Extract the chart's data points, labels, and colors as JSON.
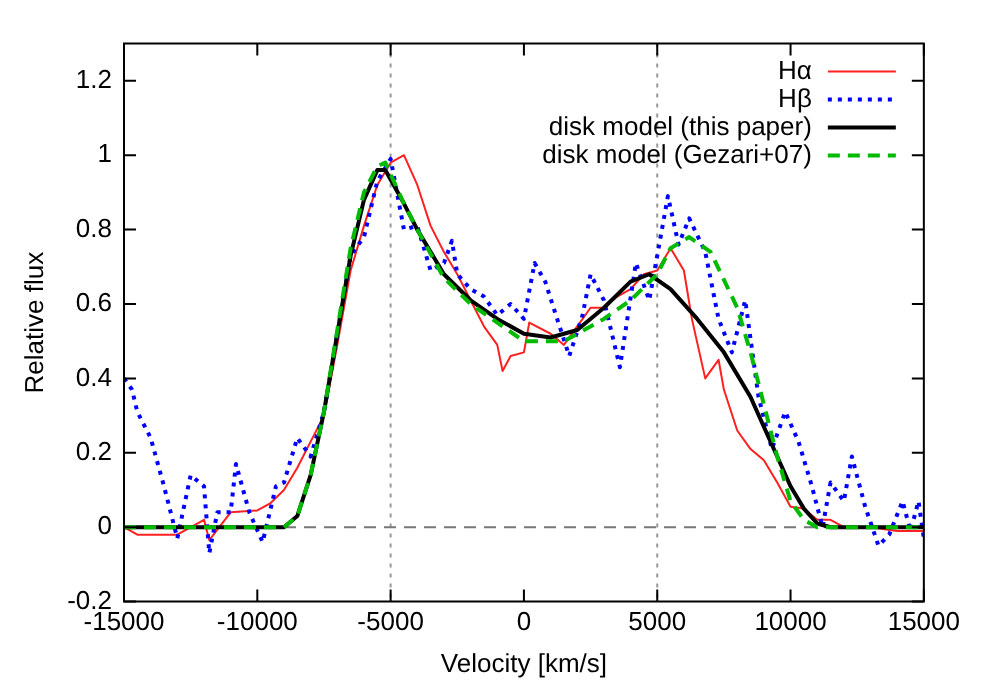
{
  "chart_data": {
    "type": "line",
    "xlabel": "Velocity [km/s]",
    "ylabel": "Relative flux",
    "xlim": [
      -15000,
      15000
    ],
    "xticks": [
      -15000,
      -10000,
      -5000,
      0,
      5000,
      10000,
      15000
    ],
    "ylim": [
      -0.2,
      1.3
    ],
    "yticks": [
      -0.2,
      0,
      0.2,
      0.4,
      0.6,
      0.8,
      1,
      1.2
    ],
    "grid": false,
    "legend": "top right",
    "marker": "none",
    "ref_lines": [
      {
        "axis": "x",
        "value": -5000,
        "color": "#999999",
        "line_style": "dotted"
      },
      {
        "axis": "x",
        "value": 5000,
        "color": "#999999",
        "line_style": "dotted"
      },
      {
        "axis": "y",
        "value": 0,
        "color": "#777777",
        "line_style": "dashed"
      }
    ],
    "series": [
      {
        "name": "Hα",
        "color": "#ff2020",
        "line_style": "solid",
        "x": [
          -15000,
          -14500,
          -13000,
          -12000,
          -11800,
          -11000,
          -10000,
          -9500,
          -9000,
          -8500,
          -8000,
          -7500,
          -7000,
          -6500,
          -6000,
          -5500,
          -5000,
          -4500,
          -4000,
          -3500,
          -3000,
          -2500,
          -2000,
          -1500,
          -1000,
          -800,
          -500,
          0,
          200,
          1000,
          1500,
          2000,
          2500,
          3000,
          3500,
          4000,
          4500,
          5000,
          5500,
          6000,
          6300,
          6800,
          7300,
          7500,
          8000,
          8500,
          9000,
          9500,
          10000,
          10500,
          11000,
          11500,
          12000,
          13000,
          14000,
          15000
        ],
        "values": [
          0,
          -0.02,
          -0.02,
          0.02,
          -0.035,
          0.04,
          0.045,
          0.065,
          0.1,
          0.16,
          0.23,
          0.3,
          0.49,
          0.69,
          0.81,
          0.92,
          0.98,
          1.0,
          0.92,
          0.81,
          0.74,
          0.68,
          0.61,
          0.54,
          0.49,
          0.42,
          0.46,
          0.47,
          0.55,
          0.52,
          0.49,
          0.54,
          0.59,
          0.59,
          0.62,
          0.64,
          0.68,
          0.69,
          0.75,
          0.69,
          0.56,
          0.4,
          0.45,
          0.37,
          0.26,
          0.21,
          0.18,
          0.12,
          0.055,
          0.05,
          0.02,
          0.02,
          0,
          0,
          -0.01,
          -0.01
        ]
      },
      {
        "name": "Hβ",
        "color": "#0000ff",
        "line_style": "dotted",
        "x": [
          -15000,
          -14700,
          -14500,
          -14000,
          -13500,
          -13000,
          -12500,
          -12000,
          -11800,
          -11500,
          -11000,
          -10800,
          -10300,
          -9800,
          -9300,
          -9000,
          -8500,
          -8000,
          -7500,
          -7000,
          -6500,
          -6000,
          -5500,
          -5000,
          -4500,
          -4000,
          -3500,
          -3000,
          -2700,
          -2500,
          -2000,
          -1500,
          -1000,
          -500,
          0,
          400,
          800,
          1200,
          1700,
          2200,
          2500,
          3000,
          3600,
          4200,
          4700,
          5000,
          5400,
          5800,
          6200,
          6800,
          7300,
          7800,
          8300,
          8800,
          9300,
          9800,
          10300,
          10800,
          11200,
          11500,
          12000,
          12300,
          12800,
          13300,
          13700,
          14200,
          14500,
          14800,
          15000
        ],
        "values": [
          0.4,
          0.37,
          0.31,
          0.24,
          0.11,
          -0.03,
          0.14,
          0.11,
          -0.07,
          0.04,
          0.04,
          0.17,
          0.04,
          -0.04,
          0.11,
          0.12,
          0.24,
          0.19,
          0.31,
          0.52,
          0.73,
          0.78,
          0.93,
          0.99,
          0.8,
          0.81,
          0.69,
          0.71,
          0.77,
          0.68,
          0.64,
          0.62,
          0.57,
          0.6,
          0.56,
          0.71,
          0.66,
          0.57,
          0.46,
          0.57,
          0.68,
          0.61,
          0.43,
          0.71,
          0.61,
          0.73,
          0.89,
          0.76,
          0.83,
          0.74,
          0.56,
          0.47,
          0.61,
          0.35,
          0.21,
          0.31,
          0.23,
          0.11,
          0,
          0.12,
          0.07,
          0.19,
          0.055,
          -0.05,
          -0.02,
          0.07,
          -0.01,
          0.07,
          -0.03
        ]
      },
      {
        "name": "disk model (this paper)",
        "color": "#000000",
        "line_style": "solid",
        "x": [
          -15000,
          -9000,
          -8500,
          -8000,
          -7500,
          -7000,
          -6500,
          -6000,
          -5500,
          -5200,
          -4500,
          -4000,
          -3000,
          -2000,
          -1000,
          0,
          1000,
          2000,
          3000,
          4000,
          4700,
          5500,
          6500,
          7500,
          8500,
          9500,
          10000,
          10500,
          11000,
          11500,
          15000
        ],
        "values": [
          0,
          0,
          0.03,
          0.14,
          0.31,
          0.52,
          0.73,
          0.88,
          0.96,
          0.96,
          0.87,
          0.8,
          0.68,
          0.61,
          0.56,
          0.52,
          0.51,
          0.53,
          0.59,
          0.66,
          0.68,
          0.64,
          0.56,
          0.47,
          0.35,
          0.19,
          0.11,
          0.05,
          0.01,
          0,
          0
        ]
      },
      {
        "name": "disk model (Gezari+07)",
        "color": "#00bb00",
        "line_style": "dashed",
        "x": [
          -15000,
          -9000,
          -8500,
          -8000,
          -7500,
          -7000,
          -6500,
          -6000,
          -5500,
          -5200,
          -4500,
          -4000,
          -3000,
          -2000,
          -1000,
          0,
          1500,
          3000,
          4000,
          5000,
          5500,
          6200,
          7000,
          8000,
          8500,
          9000,
          9500,
          10000,
          10500,
          11000,
          15000
        ],
        "values": [
          0,
          0,
          0.03,
          0.14,
          0.31,
          0.53,
          0.75,
          0.9,
          0.97,
          0.98,
          0.87,
          0.8,
          0.67,
          0.6,
          0.55,
          0.5,
          0.5,
          0.56,
          0.61,
          0.68,
          0.75,
          0.78,
          0.74,
          0.59,
          0.47,
          0.33,
          0.19,
          0.07,
          0.02,
          0,
          0
        ]
      }
    ]
  }
}
